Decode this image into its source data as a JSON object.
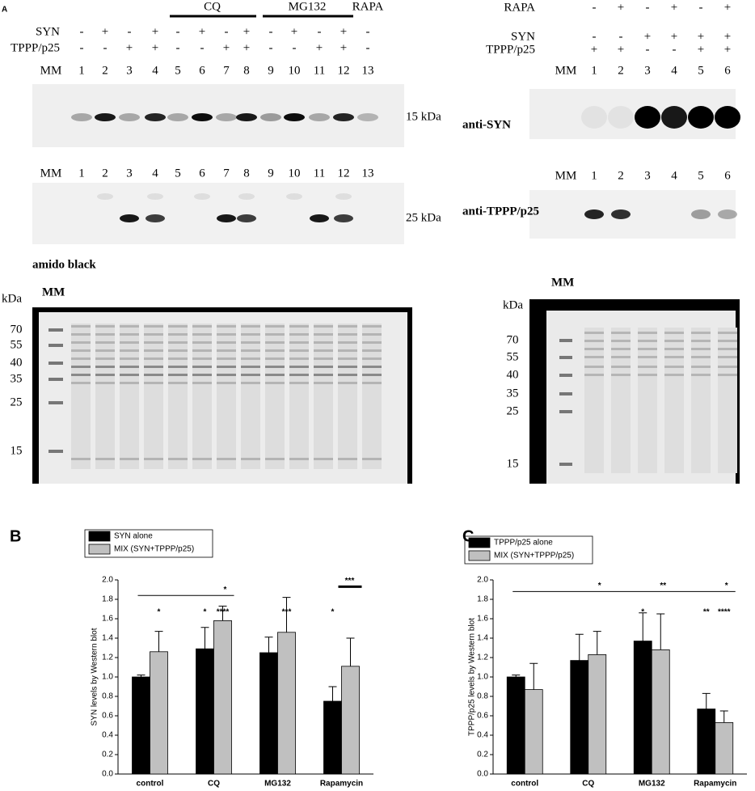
{
  "panel_a": {
    "label": "A",
    "left": {
      "groups": [
        "CQ",
        "MG132",
        "RAPA"
      ],
      "rows": [
        {
          "name": "SYN",
          "signs": [
            "-",
            "+",
            "-",
            "+",
            "-",
            "+",
            "-",
            "+",
            "-",
            "+",
            "-",
            "+",
            "-"
          ]
        },
        {
          "name": "TPPP/p25",
          "signs": [
            "-",
            "-",
            "+",
            "+",
            "-",
            "-",
            "+",
            "+",
            "-",
            "-",
            "+",
            "+",
            "-"
          ]
        }
      ],
      "lanes": [
        "MM",
        "1",
        "2",
        "3",
        "4",
        "5",
        "6",
        "7",
        "8",
        "9",
        "10",
        "11",
        "12",
        "13"
      ],
      "markers": [
        "15 kDa",
        "25 kDa"
      ],
      "stain": "amido black",
      "gel_mm": "MM",
      "gel_unit": "kDa",
      "gel_markers": [
        "70",
        "55",
        "40",
        "35",
        "25",
        "15"
      ]
    },
    "right": {
      "rows": [
        {
          "name": "RAPA",
          "signs": [
            "-",
            "+",
            "-",
            "+",
            "-",
            "+"
          ]
        },
        {
          "name": "SYN",
          "signs": [
            "-",
            "-",
            "+",
            "+",
            "+",
            "+"
          ]
        },
        {
          "name": "TPPP/p25",
          "signs": [
            "+",
            "+",
            "-",
            "-",
            "+",
            "+"
          ]
        }
      ],
      "lanes": [
        "MM",
        "1",
        "2",
        "3",
        "4",
        "5",
        "6"
      ],
      "antibodies": [
        "anti-SYN",
        "anti-TPPP/p25"
      ],
      "gel_mm": "MM",
      "gel_unit": "kDa",
      "gel_markers": [
        "70",
        "55",
        "40",
        "35",
        "25",
        "15"
      ]
    }
  },
  "chart_data": [
    {
      "type": "bar",
      "panel": "B",
      "ylabel": "SYN levels by Western blot",
      "categories": [
        "control",
        "CQ",
        "MG132",
        "Rapamycin"
      ],
      "ylim": [
        0,
        2
      ],
      "yticks": [
        {
          "value": 0,
          "label": "0.0"
        },
        0.2,
        0.4,
        0.6,
        0.8,
        {
          "value": 1,
          "label": "1.0"
        },
        1.2,
        1.4,
        1.6,
        1.8,
        {
          "value": 2,
          "label": "2.0"
        }
      ],
      "series": [
        {
          "name": "SYN alone",
          "color": "#000000",
          "values": [
            1.0,
            1.29,
            1.25,
            0.75
          ],
          "errors": [
            0.02,
            0.22,
            0.16,
            0.15
          ],
          "significance": [
            null,
            "*",
            null,
            "*"
          ]
        },
        {
          "name": "MIX (SYN+TPPP/p25)",
          "color": "#c0c0c0",
          "values": [
            1.26,
            1.58,
            1.46,
            1.11
          ],
          "errors": [
            0.21,
            0.15,
            0.36,
            0.29
          ],
          "significance": [
            "*",
            "****",
            "***",
            null
          ]
        }
      ],
      "brackets": [
        {
          "from": "control",
          "to": "CQ",
          "y": 1.84,
          "labels": [
            null,
            "*"
          ]
        },
        {
          "from": "Rapamycin",
          "to": "Rapamycin",
          "y": 1.93,
          "labels": [
            "***"
          ]
        }
      ]
    },
    {
      "type": "bar",
      "panel": "C",
      "ylabel": "TPPP/p25 levels by Western blot",
      "categories": [
        "control",
        "CQ",
        "MG132",
        "Rapamycin"
      ],
      "ylim": [
        0,
        2
      ],
      "yticks": [
        {
          "value": 0,
          "label": "0.0"
        },
        0.2,
        0.4,
        0.6,
        0.8,
        {
          "value": 1,
          "label": "1.0"
        },
        1.2,
        1.4,
        1.6,
        1.8,
        {
          "value": 2,
          "label": "2.0"
        }
      ],
      "series": [
        {
          "name": "TPPP/p25 alone",
          "color": "#000000",
          "values": [
            1.0,
            1.17,
            1.37,
            0.67
          ],
          "errors": [
            0.02,
            0.27,
            0.29,
            0.16
          ],
          "significance": [
            null,
            null,
            "*",
            "**"
          ]
        },
        {
          "name": "MIX (SYN+TPPP/p25)",
          "color": "#c0c0c0",
          "values": [
            0.87,
            1.23,
            1.28,
            0.53
          ],
          "errors": [
            0.27,
            0.24,
            0.37,
            0.12
          ],
          "significance": [
            null,
            null,
            null,
            "****"
          ]
        }
      ],
      "brackets": [
        {
          "from": "control",
          "to": "Rapamycin",
          "y": 1.88,
          "labels": [
            null,
            "*",
            "**",
            "*"
          ]
        }
      ]
    }
  ]
}
